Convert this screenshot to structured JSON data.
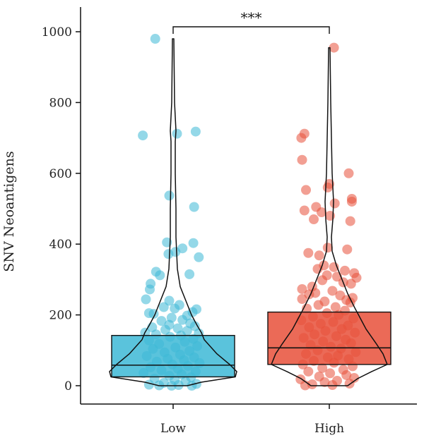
{
  "chart_data": {
    "type": "box-violin-jitter",
    "title": "",
    "xlabel": "",
    "ylabel": "SNV Neoantigens",
    "ylim": [
      -50,
      1065
    ],
    "yticks": [
      0,
      200,
      400,
      600,
      800,
      1000
    ],
    "categories": [
      "Low",
      "High"
    ],
    "significance": {
      "from": "Low",
      "to": "High",
      "label": "***",
      "y": 1000
    },
    "groups": [
      {
        "name": "Low",
        "color": "#3DB8D6",
        "box": {
          "q1": 25,
          "median": 58,
          "q3": 142,
          "whisker_low": 0,
          "whisker_high": 142
        },
        "violin_max": 980,
        "points": [
          {
            "x": -0.23,
            "y": 980
          },
          {
            "x": -0.39,
            "y": 707
          },
          {
            "x": 0.05,
            "y": 712
          },
          {
            "x": 0.29,
            "y": 718
          },
          {
            "x": -0.05,
            "y": 537
          },
          {
            "x": 0.27,
            "y": 505
          },
          {
            "x": -0.08,
            "y": 405
          },
          {
            "x": 0.26,
            "y": 403
          },
          {
            "x": 0.12,
            "y": 388
          },
          {
            "x": 0.03,
            "y": 378
          },
          {
            "x": -0.06,
            "y": 372
          },
          {
            "x": 0.33,
            "y": 363
          },
          {
            "x": -0.22,
            "y": 322
          },
          {
            "x": -0.17,
            "y": 312
          },
          {
            "x": 0.21,
            "y": 315
          },
          {
            "x": -0.29,
            "y": 288
          },
          {
            "x": -0.3,
            "y": 272
          },
          {
            "x": -0.35,
            "y": 244
          },
          {
            "x": -0.05,
            "y": 240
          },
          {
            "x": 0.08,
            "y": 228
          },
          {
            "x": -0.12,
            "y": 222
          },
          {
            "x": 0.02,
            "y": 218
          },
          {
            "x": 0.3,
            "y": 216
          },
          {
            "x": 0.25,
            "y": 208
          },
          {
            "x": -0.31,
            "y": 205
          },
          {
            "x": -0.25,
            "y": 203
          },
          {
            "x": 0.18,
            "y": 198
          },
          {
            "x": -0.02,
            "y": 192
          },
          {
            "x": 0.12,
            "y": 186
          },
          {
            "x": -0.15,
            "y": 183
          },
          {
            "x": 0.22,
            "y": 176
          },
          {
            "x": -0.05,
            "y": 172
          },
          {
            "x": 0.28,
            "y": 168
          },
          {
            "x": -0.27,
            "y": 165
          },
          {
            "x": 0.06,
            "y": 162
          },
          {
            "x": -0.1,
            "y": 158
          },
          {
            "x": 0.18,
            "y": 155
          },
          {
            "x": -0.36,
            "y": 150
          },
          {
            "x": 0.33,
            "y": 148
          },
          {
            "x": -0.22,
            "y": 145
          },
          {
            "x": 0.1,
            "y": 142
          },
          {
            "x": -0.04,
            "y": 138
          },
          {
            "x": 0.26,
            "y": 132
          },
          {
            "x": -0.31,
            "y": 128
          },
          {
            "x": 0.15,
            "y": 124
          },
          {
            "x": -0.18,
            "y": 118
          },
          {
            "x": 0.31,
            "y": 112
          },
          {
            "x": 0.03,
            "y": 108
          },
          {
            "x": -0.26,
            "y": 104
          },
          {
            "x": 0.21,
            "y": 98
          },
          {
            "x": -0.11,
            "y": 94
          },
          {
            "x": 0.09,
            "y": 88
          },
          {
            "x": -0.34,
            "y": 84
          },
          {
            "x": 0.27,
            "y": 80
          },
          {
            "x": -0.07,
            "y": 76
          },
          {
            "x": 0.14,
            "y": 72
          },
          {
            "x": -0.21,
            "y": 68
          },
          {
            "x": 0.34,
            "y": 64
          },
          {
            "x": -0.01,
            "y": 60
          },
          {
            "x": 0.19,
            "y": 56
          },
          {
            "x": -0.29,
            "y": 52
          },
          {
            "x": 0.06,
            "y": 48
          },
          {
            "x": -0.15,
            "y": 44
          },
          {
            "x": 0.29,
            "y": 40
          },
          {
            "x": -0.38,
            "y": 36
          },
          {
            "x": 0.11,
            "y": 32
          },
          {
            "x": -0.05,
            "y": 28
          },
          {
            "x": 0.23,
            "y": 24
          },
          {
            "x": -0.24,
            "y": 20
          },
          {
            "x": 0.02,
            "y": 16
          },
          {
            "x": 0.16,
            "y": 12
          },
          {
            "x": -0.12,
            "y": 8
          },
          {
            "x": 0.3,
            "y": 5
          },
          {
            "x": -0.31,
            "y": 3
          },
          {
            "x": 0.07,
            "y": 2
          },
          {
            "x": -0.18,
            "y": 1
          },
          {
            "x": 0.24,
            "y": 0
          },
          {
            "x": -0.02,
            "y": 0
          }
        ]
      },
      {
        "name": "High",
        "color": "#E8503A",
        "box": {
          "q1": 60,
          "median": 107,
          "q3": 208,
          "whisker_low": 0,
          "whisker_high": 208
        },
        "violin_max": 955,
        "points": [
          {
            "x": 0.06,
            "y": 955
          },
          {
            "x": -0.36,
            "y": 700
          },
          {
            "x": -0.32,
            "y": 712
          },
          {
            "x": -0.35,
            "y": 638
          },
          {
            "x": 0.25,
            "y": 600
          },
          {
            "x": 0.0,
            "y": 570
          },
          {
            "x": -0.02,
            "y": 560
          },
          {
            "x": -0.3,
            "y": 553
          },
          {
            "x": 0.29,
            "y": 528
          },
          {
            "x": 0.29,
            "y": 520
          },
          {
            "x": 0.07,
            "y": 515
          },
          {
            "x": -0.17,
            "y": 505
          },
          {
            "x": -0.32,
            "y": 495
          },
          {
            "x": -0.1,
            "y": 490
          },
          {
            "x": 0.01,
            "y": 480
          },
          {
            "x": 0.27,
            "y": 465
          },
          {
            "x": -0.2,
            "y": 470
          },
          {
            "x": -0.02,
            "y": 390
          },
          {
            "x": 0.23,
            "y": 385
          },
          {
            "x": -0.27,
            "y": 375
          },
          {
            "x": -0.13,
            "y": 368
          },
          {
            "x": -0.07,
            "y": 340
          },
          {
            "x": 0.06,
            "y": 335
          },
          {
            "x": -0.15,
            "y": 330
          },
          {
            "x": 0.2,
            "y": 325
          },
          {
            "x": 0.32,
            "y": 318
          },
          {
            "x": -0.03,
            "y": 312
          },
          {
            "x": 0.1,
            "y": 308
          },
          {
            "x": 0.35,
            "y": 305
          },
          {
            "x": -0.09,
            "y": 298
          },
          {
            "x": 0.18,
            "y": 292
          },
          {
            "x": 0.28,
            "y": 288
          },
          {
            "x": -0.22,
            "y": 280
          },
          {
            "x": -0.35,
            "y": 273
          },
          {
            "x": 0.04,
            "y": 268
          },
          {
            "x": -0.18,
            "y": 262
          },
          {
            "x": -0.26,
            "y": 258
          },
          {
            "x": 0.14,
            "y": 255
          },
          {
            "x": 0.3,
            "y": 248
          },
          {
            "x": -0.35,
            "y": 245
          },
          {
            "x": 0.22,
            "y": 242
          },
          {
            "x": -0.06,
            "y": 238
          },
          {
            "x": 0.27,
            "y": 235
          },
          {
            "x": -0.14,
            "y": 228
          },
          {
            "x": 0.08,
            "y": 222
          },
          {
            "x": -0.29,
            "y": 218
          },
          {
            "x": 0.2,
            "y": 212
          },
          {
            "x": -0.03,
            "y": 205
          },
          {
            "x": 0.12,
            "y": 200
          },
          {
            "x": -0.21,
            "y": 195
          },
          {
            "x": 0.31,
            "y": 190
          },
          {
            "x": -0.36,
            "y": 185
          },
          {
            "x": 0.05,
            "y": 180
          },
          {
            "x": -0.11,
            "y": 175
          },
          {
            "x": 0.24,
            "y": 170
          },
          {
            "x": -0.26,
            "y": 165
          },
          {
            "x": 0.16,
            "y": 160
          },
          {
            "x": -0.05,
            "y": 155
          },
          {
            "x": 0.33,
            "y": 150
          },
          {
            "x": -0.19,
            "y": 145
          },
          {
            "x": 0.09,
            "y": 140
          },
          {
            "x": -0.33,
            "y": 135
          },
          {
            "x": 0.21,
            "y": 130
          },
          {
            "x": -0.08,
            "y": 125
          },
          {
            "x": 0.28,
            "y": 120
          },
          {
            "x": -0.24,
            "y": 115
          },
          {
            "x": 0.02,
            "y": 110
          },
          {
            "x": 0.15,
            "y": 105
          },
          {
            "x": -0.15,
            "y": 100
          },
          {
            "x": 0.34,
            "y": 95
          },
          {
            "x": -0.3,
            "y": 90
          },
          {
            "x": 0.11,
            "y": 85
          },
          {
            "x": -0.02,
            "y": 80
          },
          {
            "x": 0.25,
            "y": 75
          },
          {
            "x": -0.2,
            "y": 70
          },
          {
            "x": 0.06,
            "y": 65
          },
          {
            "x": -0.34,
            "y": 60
          },
          {
            "x": 0.3,
            "y": 55
          },
          {
            "x": -0.09,
            "y": 50
          },
          {
            "x": 0.18,
            "y": 45
          },
          {
            "x": -0.27,
            "y": 40
          },
          {
            "x": 0.01,
            "y": 35
          },
          {
            "x": 0.22,
            "y": 30
          },
          {
            "x": -0.13,
            "y": 26
          },
          {
            "x": 0.32,
            "y": 22
          },
          {
            "x": -0.37,
            "y": 18
          },
          {
            "x": 0.1,
            "y": 14
          },
          {
            "x": -0.06,
            "y": 10
          },
          {
            "x": 0.26,
            "y": 6
          },
          {
            "x": -0.22,
            "y": 4
          },
          {
            "x": 0.04,
            "y": 2
          },
          {
            "x": -0.31,
            "y": 1
          }
        ]
      }
    ]
  }
}
